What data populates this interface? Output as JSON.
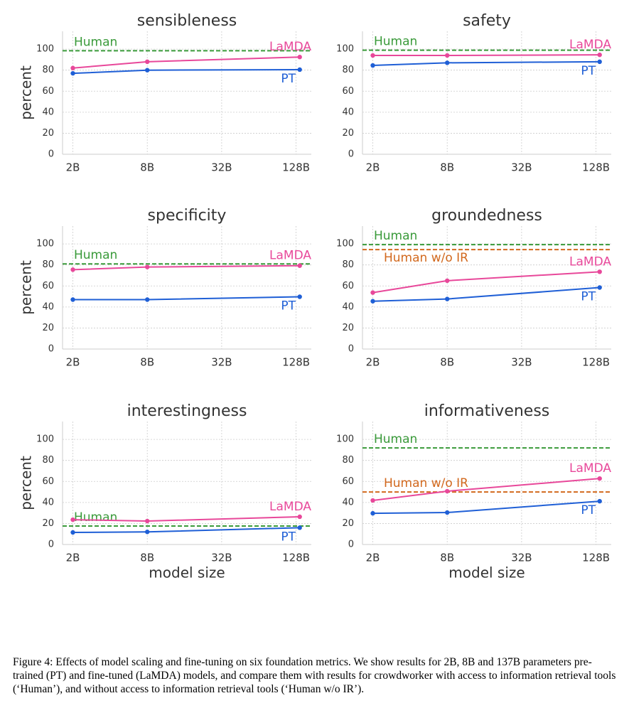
{
  "chart_data": [
    {
      "type": "line",
      "title": "sensibleness",
      "ylabel": "percent",
      "x": [
        2,
        8,
        137
      ],
      "xscale": "log",
      "xlim": [
        1.65,
        170
      ],
      "xticks": [
        {
          "value": 2,
          "label": "2B"
        },
        {
          "value": 8,
          "label": "8B"
        },
        {
          "value": 32,
          "label": "32B"
        },
        {
          "value": 128,
          "label": "128B"
        }
      ],
      "ylim": [
        0,
        117
      ],
      "yticks": [
        0,
        20,
        40,
        60,
        80,
        100
      ],
      "grid": true,
      "series": [
        {
          "name": "PT",
          "color": "#1f5fd6",
          "values": [
            77,
            80,
            80.5
          ]
        },
        {
          "name": "LaMDA",
          "color": "#e8489a",
          "values": [
            82,
            88,
            92.5
          ]
        }
      ],
      "reference_lines": [
        {
          "name": "Human",
          "color": "#3a9a3a",
          "value": 98.5
        }
      ]
    },
    {
      "type": "line",
      "title": "safety",
      "x": [
        2,
        8,
        137
      ],
      "xscale": "log",
      "xlim": [
        1.65,
        170
      ],
      "xticks": [
        {
          "value": 2,
          "label": "2B"
        },
        {
          "value": 8,
          "label": "8B"
        },
        {
          "value": 32,
          "label": "32B"
        },
        {
          "value": 128,
          "label": "128B"
        }
      ],
      "ylim": [
        0,
        117
      ],
      "yticks": [
        0,
        20,
        40,
        60,
        80,
        100
      ],
      "grid": true,
      "series": [
        {
          "name": "PT",
          "color": "#1f5fd6",
          "values": [
            84.5,
            87,
            88
          ]
        },
        {
          "name": "LaMDA",
          "color": "#e8489a",
          "values": [
            94,
            94,
            94.6
          ]
        }
      ],
      "reference_lines": [
        {
          "name": "Human",
          "color": "#3a9a3a",
          "value": 99
        }
      ]
    },
    {
      "type": "line",
      "title": "specificity",
      "ylabel": "percent",
      "x": [
        2,
        8,
        137
      ],
      "xscale": "log",
      "xlim": [
        1.65,
        170
      ],
      "xticks": [
        {
          "value": 2,
          "label": "2B"
        },
        {
          "value": 8,
          "label": "8B"
        },
        {
          "value": 32,
          "label": "32B"
        },
        {
          "value": 128,
          "label": "128B"
        }
      ],
      "ylim": [
        0,
        117
      ],
      "yticks": [
        0,
        20,
        40,
        60,
        80,
        100
      ],
      "grid": true,
      "series": [
        {
          "name": "PT",
          "color": "#1f5fd6",
          "values": [
            47,
            47,
            49.7
          ]
        },
        {
          "name": "LaMDA",
          "color": "#e8489a",
          "values": [
            75.5,
            78,
            79.3
          ]
        }
      ],
      "reference_lines": [
        {
          "name": "Human",
          "color": "#3a9a3a",
          "value": 81
        }
      ]
    },
    {
      "type": "line",
      "title": "groundedness",
      "x": [
        2,
        8,
        137
      ],
      "xscale": "log",
      "xlim": [
        1.65,
        170
      ],
      "xticks": [
        {
          "value": 2,
          "label": "2B"
        },
        {
          "value": 8,
          "label": "8B"
        },
        {
          "value": 32,
          "label": "32B"
        },
        {
          "value": 128,
          "label": "128B"
        }
      ],
      "ylim": [
        0,
        117
      ],
      "yticks": [
        0,
        20,
        40,
        60,
        80,
        100
      ],
      "grid": true,
      "series": [
        {
          "name": "PT",
          "color": "#1f5fd6",
          "values": [
            45.5,
            47.6,
            58.5
          ]
        },
        {
          "name": "LaMDA",
          "color": "#e8489a",
          "values": [
            53.7,
            65,
            73.5
          ]
        }
      ],
      "reference_lines": [
        {
          "name": "Human",
          "color": "#3a9a3a",
          "value": 99.3
        },
        {
          "name": "Human w/o IR",
          "color": "#d2691e",
          "value": 94.6
        }
      ]
    },
    {
      "type": "line",
      "title": "interestingness",
      "ylabel": "percent",
      "xlabel": "model size",
      "x": [
        2,
        8,
        137
      ],
      "xscale": "log",
      "xlim": [
        1.65,
        170
      ],
      "xticks": [
        {
          "value": 2,
          "label": "2B"
        },
        {
          "value": 8,
          "label": "8B"
        },
        {
          "value": 32,
          "label": "32B"
        },
        {
          "value": 128,
          "label": "128B"
        }
      ],
      "ylim": [
        0,
        117
      ],
      "yticks": [
        0,
        20,
        40,
        60,
        80,
        100
      ],
      "grid": true,
      "series": [
        {
          "name": "PT",
          "color": "#1f5fd6",
          "values": [
            11.5,
            12,
            16
          ]
        },
        {
          "name": "LaMDA",
          "color": "#e8489a",
          "values": [
            23.6,
            22.3,
            26.4
          ]
        }
      ],
      "reference_lines": [
        {
          "name": "Human",
          "color": "#3a9a3a",
          "value": 17.6
        }
      ]
    },
    {
      "type": "line",
      "title": "informativeness",
      "xlabel": "model size",
      "x": [
        2,
        8,
        137
      ],
      "xscale": "log",
      "xlim": [
        1.65,
        170
      ],
      "xticks": [
        {
          "value": 2,
          "label": "2B"
        },
        {
          "value": 8,
          "label": "8B"
        },
        {
          "value": 32,
          "label": "32B"
        },
        {
          "value": 128,
          "label": "128B"
        }
      ],
      "ylim": [
        0,
        117
      ],
      "yticks": [
        0,
        20,
        40,
        60,
        80,
        100
      ],
      "grid": true,
      "series": [
        {
          "name": "PT",
          "color": "#1f5fd6",
          "values": [
            29.7,
            30.4,
            41.2
          ]
        },
        {
          "name": "LaMDA",
          "color": "#e8489a",
          "values": [
            41.9,
            50.7,
            62.8
          ]
        }
      ],
      "reference_lines": [
        {
          "name": "Human",
          "color": "#3a9a3a",
          "value": 91.9
        },
        {
          "name": "Human w/o IR",
          "color": "#d2691e",
          "value": 50
        }
      ]
    }
  ],
  "caption": "Figure 4: Effects of model scaling and fine-tuning on six foundation metrics. We show results for 2B, 8B and 137B parameters pre-trained (PT) and fine-tuned (LaMDA) models, and compare them with results for crowdworker with access to information retrieval tools (‘Human’), and without access to information retrieval tools (‘Human w/o IR’)."
}
